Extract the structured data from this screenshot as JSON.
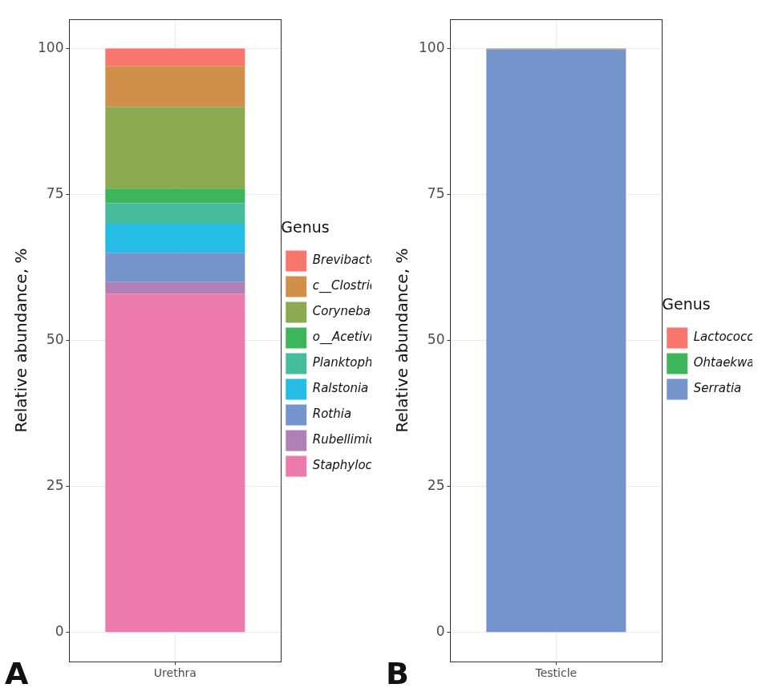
{
  "chart_data": [
    {
      "type": "bar",
      "annotation": "A",
      "stacked": true,
      "grid": true,
      "legend": "right",
      "legend_title": "Genus",
      "y_label": "Relative abundance, %",
      "categories": [
        "Urethra"
      ],
      "ylim": [
        -5,
        105
      ],
      "yticks": [
        0,
        25,
        50,
        75,
        100
      ],
      "series": [
        {
          "name": "Staphylococcus",
          "color": "#ec7aac",
          "values": [
            58
          ]
        },
        {
          "name": "Rubellimicrobium",
          "color": "#b07fb8",
          "values": [
            2
          ]
        },
        {
          "name": "Rothia",
          "color": "#7594cc",
          "values": [
            5
          ]
        },
        {
          "name": "Ralstonia",
          "color": "#25bce5",
          "values": [
            5
          ]
        },
        {
          "name": "Planktophila",
          "color": "#45bc9b",
          "values": [
            3.5
          ]
        },
        {
          "name": "o__Acetivibrionales; unclass.",
          "color": "#3db55a",
          "values": [
            2.5
          ]
        },
        {
          "name": "Corynebacterium",
          "color": "#8baa52",
          "values": [
            14
          ]
        },
        {
          "name": "c__Clostridia; unclass.",
          "color": "#d08f4a",
          "values": [
            7
          ]
        },
        {
          "name": "Brevibacterium",
          "color": "#f8766d",
          "values": [
            3
          ]
        }
      ]
    },
    {
      "type": "bar",
      "annotation": "B",
      "stacked": true,
      "grid": true,
      "legend": "right",
      "legend_title": "Genus",
      "y_label": "Relative abundance, %",
      "categories": [
        "Testicle"
      ],
      "ylim": [
        -5,
        105
      ],
      "yticks": [
        0,
        25,
        50,
        75,
        100
      ],
      "series": [
        {
          "name": "Serratia",
          "color": "#7594cc",
          "values": [
            99.8
          ]
        },
        {
          "name": "Ohtaekwangia",
          "color": "#3db55a",
          "values": [
            0.1
          ]
        },
        {
          "name": "Lactococcus",
          "color": "#f8766d",
          "values": [
            0.1
          ]
        }
      ]
    }
  ]
}
